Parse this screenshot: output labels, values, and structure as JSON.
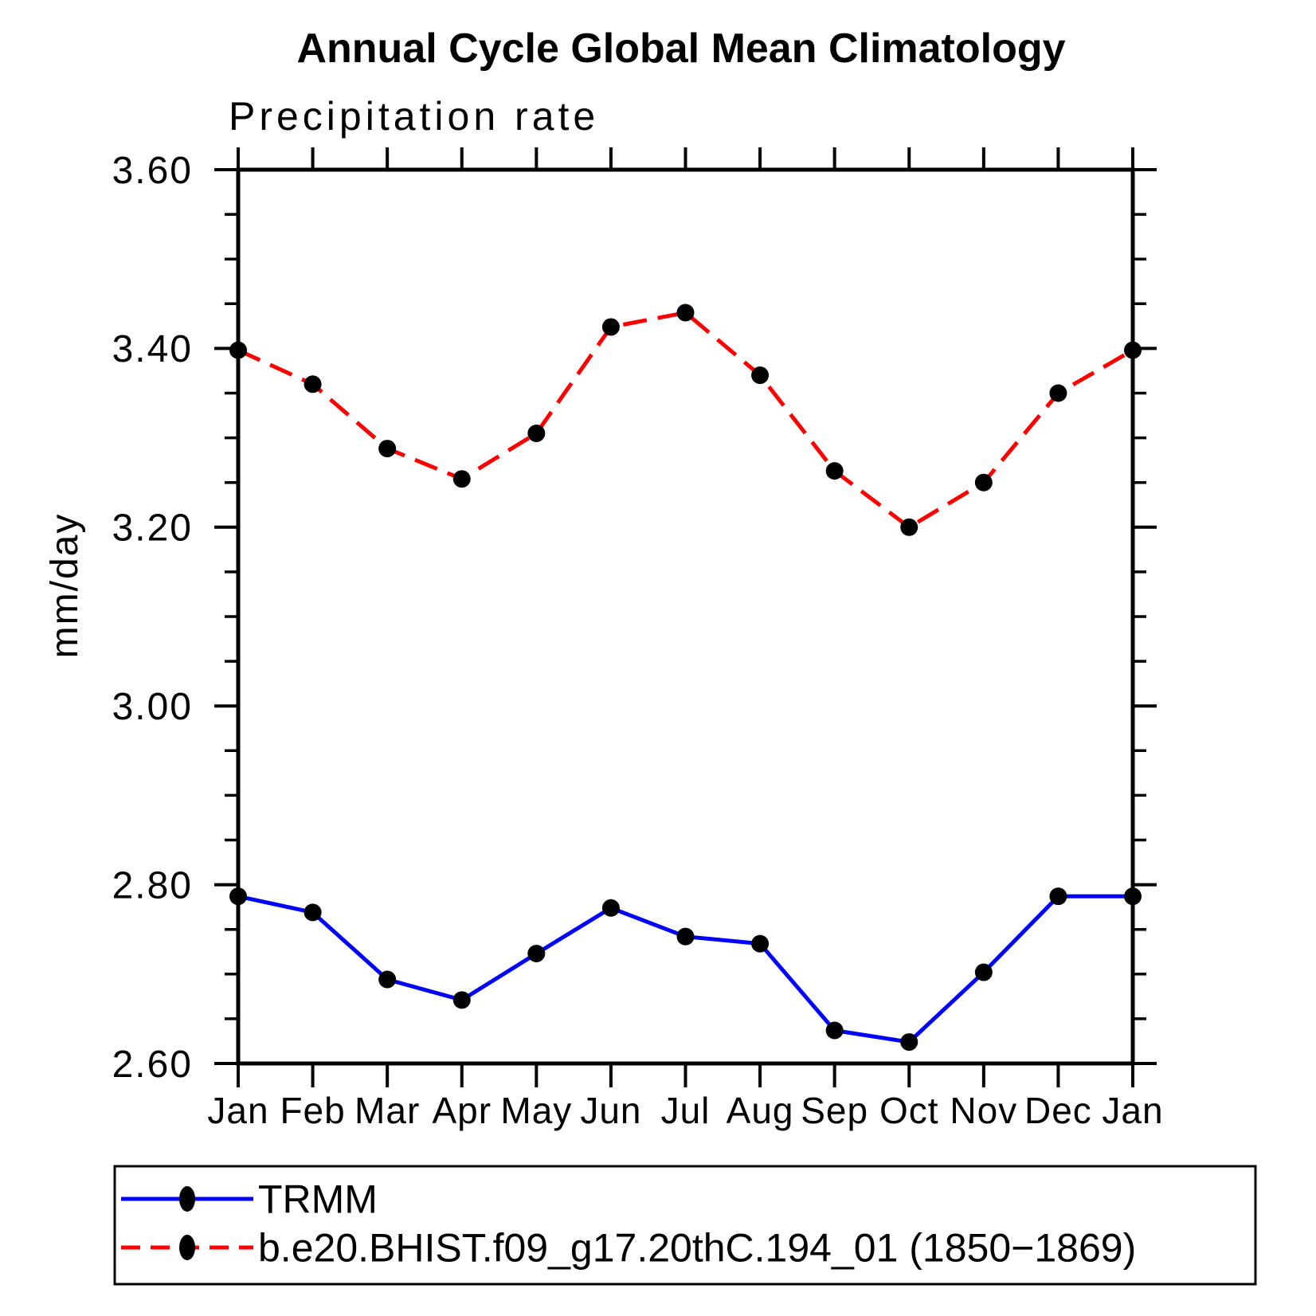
{
  "header": {
    "title": "Annual Cycle Global Mean Climatology"
  },
  "chart_data": {
    "type": "line",
    "title": "Precipitation rate",
    "ylabel": "mm/day",
    "xlabel": "",
    "categories": [
      "Jan",
      "Feb",
      "Mar",
      "Apr",
      "May",
      "Jun",
      "Jul",
      "Aug",
      "Sep",
      "Oct",
      "Nov",
      "Dec",
      "Jan"
    ],
    "ylim": [
      2.6,
      3.6
    ],
    "ytick_major_step": 0.2,
    "ytick_minor_step": 0.05,
    "ytick_labels": [
      "2.60",
      "2.80",
      "3.00",
      "3.20",
      "3.40",
      "3.60"
    ],
    "grid": false,
    "legend_position": "bottom-left-outside",
    "colors": {
      "axis": "#000000",
      "marker": "#000000",
      "trmm_line": "#0000ff",
      "model_line": "#ff0000"
    },
    "series": [
      {
        "name": "TRMM",
        "line_color": "#0000ff",
        "line_style": "solid",
        "marker": "filled-circle",
        "marker_color": "#000000",
        "values": [
          2.787,
          2.769,
          2.694,
          2.671,
          2.723,
          2.774,
          2.742,
          2.734,
          2.637,
          2.624,
          2.702,
          2.787,
          2.787
        ]
      },
      {
        "name": "b.e20.BHIST.f09_g17.20thC.194_01 (1850−1869)",
        "line_color": "#ff0000",
        "line_style": "dashed",
        "marker": "filled-circle",
        "marker_color": "#000000",
        "values": [
          3.398,
          3.36,
          3.288,
          3.254,
          3.305,
          3.424,
          3.44,
          3.37,
          3.263,
          3.2,
          3.25,
          3.35,
          3.398
        ]
      }
    ]
  }
}
